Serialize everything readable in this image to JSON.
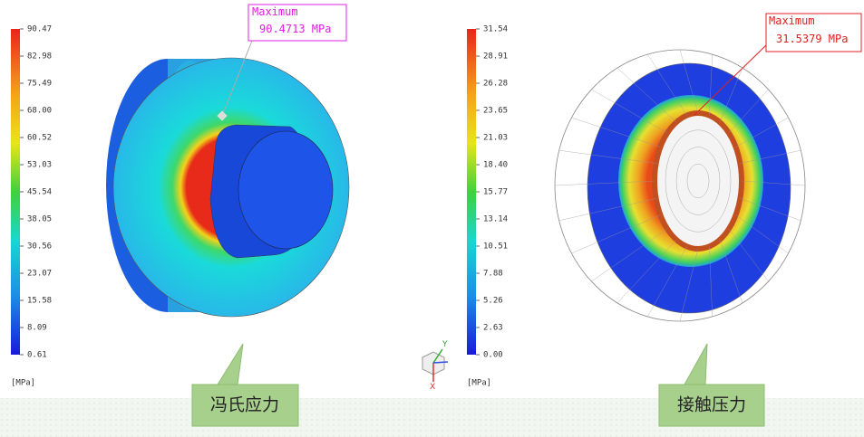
{
  "left_panel": {
    "scale_labels": [
      "90.47",
      "82.98",
      "75.49",
      "68.00",
      "60.52",
      "53.03",
      "45.54",
      "38.05",
      "30.56",
      "23.07",
      "15.58",
      "8.09",
      "0.61"
    ],
    "unit": "[MPa]",
    "annotation": {
      "title": "Maximum",
      "value": "90.4713 MPa"
    },
    "caption": "冯氏应力"
  },
  "right_panel": {
    "scale_labels": [
      "31.54",
      "28.91",
      "26.28",
      "23.65",
      "21.03",
      "18.40",
      "15.77",
      "13.14",
      "10.51",
      "7.88",
      "5.26",
      "2.63",
      "0.00"
    ],
    "unit": "[MPa]",
    "annotation": {
      "title": "Maximum",
      "value": "31.5379 MPa"
    },
    "caption": "接触压力"
  },
  "triad": {
    "y_label": "Y",
    "x_label": "X"
  }
}
